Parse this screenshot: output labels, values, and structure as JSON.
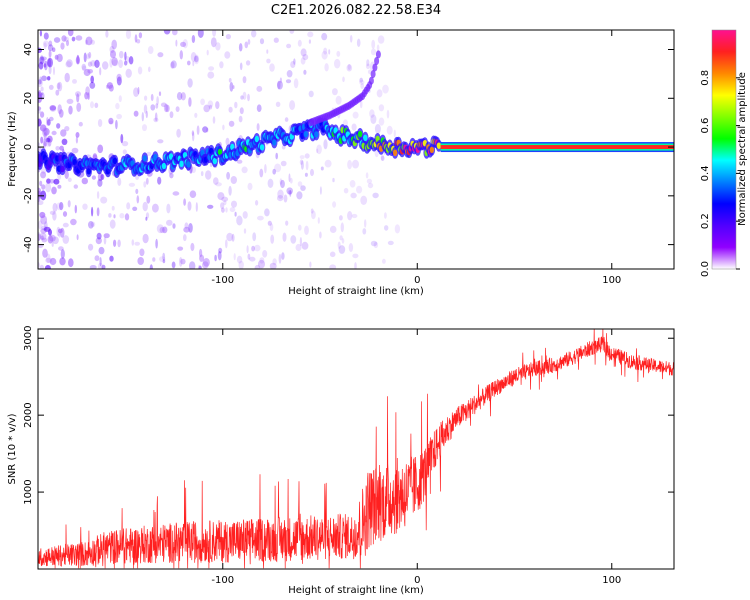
{
  "figure_title": "C2E1.2026.082.22.58.E34",
  "colors": {
    "snr_line": "#ff2020",
    "signal_core": "#ff2a20",
    "axis": "#000000",
    "colorbar_stops": [
      "#ff1090",
      "#ff2020",
      "#ff8800",
      "#ffff00",
      "#80ff00",
      "#00ff00",
      "#00ffff",
      "#0080ff",
      "#0000ff",
      "#5000ff",
      "#9000ff",
      "#ffffff"
    ]
  },
  "chart_data": [
    {
      "id": "spectrogram",
      "type": "heatmap",
      "title": "C2E1.2026.082.22.58.E34",
      "xlabel": "Height of straight line (km)",
      "ylabel": "Frequency (Hz)",
      "xlim": [
        -195,
        132
      ],
      "ylim": [
        -50,
        48
      ],
      "xticks": [
        -100,
        0,
        100
      ],
      "xtick_labels": [
        "-100",
        "0",
        "100"
      ],
      "yticks": [
        -40,
        -20,
        0,
        20,
        40
      ],
      "ytick_labels": [
        "-40",
        "-20",
        "0",
        "20",
        "40"
      ],
      "colorbar_label": "Normalized spectral amplitude",
      "colorbar_range": [
        0,
        1
      ],
      "colorbar_ticks": [
        0.0,
        0.2,
        0.4,
        0.6,
        0.8
      ],
      "colorbar_tick_labels": [
        "0.0",
        "0.2",
        "0.4",
        "0.6",
        "0.8"
      ],
      "signal_track": {
        "heights_km": [
          -195,
          -180,
          -160,
          -140,
          -120,
          -100,
          -80,
          -60,
          -50,
          -40,
          -30,
          -20,
          -10,
          0,
          10,
          132
        ],
        "frequency_hz": [
          -5,
          -7,
          -8,
          -7,
          -5,
          -3,
          2,
          6,
          8,
          5,
          3,
          1,
          0,
          0,
          0,
          0
        ],
        "amplitude": [
          0.25,
          0.3,
          0.35,
          0.4,
          0.4,
          0.45,
          0.45,
          0.4,
          0.4,
          0.5,
          0.6,
          0.75,
          0.85,
          0.9,
          0.95,
          1.0
        ]
      },
      "offset_branch": {
        "heights_km": [
          -55,
          -45,
          -35,
          -28,
          -24,
          -20
        ],
        "frequency_hz": [
          10,
          13,
          17,
          21,
          26,
          38
        ]
      },
      "noise_region_km": [
        -195,
        -30
      ]
    },
    {
      "id": "snr",
      "type": "line",
      "xlabel": "Height of straight line (km)",
      "ylabel": "SNR (10 * v/v)",
      "xlim": [
        -195,
        132
      ],
      "ylim": [
        0,
        3120
      ],
      "xticks": [
        -100,
        0,
        100
      ],
      "xtick_labels": [
        "-100",
        "0",
        "100"
      ],
      "yticks": [
        1000,
        2000,
        3000
      ],
      "ytick_labels": [
        "1000",
        "2000",
        "3000"
      ],
      "series": [
        {
          "name": "SNR",
          "x": [
            -195,
            -180,
            -170,
            -160,
            -140,
            -120,
            -100,
            -80,
            -60,
            -40,
            -32,
            -28,
            -25,
            -20,
            -15,
            -10,
            -5,
            0,
            5,
            10,
            15,
            20,
            30,
            40,
            50,
            60,
            70,
            80,
            90,
            95,
            100,
            110,
            120,
            132
          ],
          "baseline": [
            150,
            180,
            200,
            280,
            320,
            350,
            360,
            380,
            400,
            420,
            430,
            600,
            800,
            850,
            900,
            950,
            1000,
            1100,
            1300,
            1600,
            1800,
            1950,
            2150,
            2350,
            2500,
            2600,
            2650,
            2750,
            2880,
            2920,
            2800,
            2700,
            2650,
            2600
          ],
          "noise_amplitude": [
            120,
            150,
            170,
            220,
            250,
            270,
            280,
            290,
            300,
            300,
            300,
            500,
            550,
            500,
            500,
            500,
            450,
            400,
            350,
            250,
            200,
            150,
            130,
            110,
            110,
            100,
            100,
            100,
            100,
            100,
            100,
            100,
            90,
            90
          ]
        }
      ]
    }
  ]
}
